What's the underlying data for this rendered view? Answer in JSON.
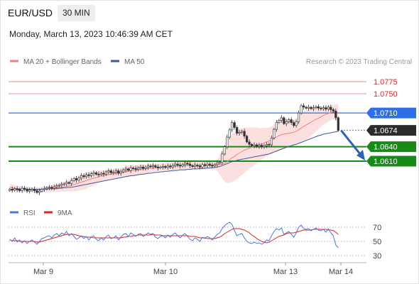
{
  "header": {
    "symbol": "EUR/USD",
    "timeframe": "30 MIN",
    "datetime": "Monday, March 13, 2023 10:46:39 AM CET"
  },
  "legend": {
    "items": [
      {
        "label": "MA 20 + Bollinger Bands",
        "color": "#f08080"
      },
      {
        "label": "MA 50",
        "color": "#3d5a99"
      }
    ],
    "copyright": "Research © 2023 Trading Central"
  },
  "rsi_legend": {
    "items": [
      {
        "label": "RSI",
        "color": "#4a78d6"
      },
      {
        "label": "9MA",
        "color": "#e02020"
      }
    ]
  },
  "chart_data": {
    "type": "candlestick",
    "instrument": "EUR/USD",
    "timeframe": "30 MIN",
    "x_tick_labels": [
      "Mar 9",
      "Mar 10",
      "Mar 13",
      "Mar 14"
    ],
    "price_ylim": [
      1.0535,
      1.08
    ],
    "levels": [
      {
        "value": "1.0775",
        "type": "resistance",
        "color": "#f4a0a0",
        "boxed": false
      },
      {
        "value": "1.0750",
        "type": "resistance",
        "color": "#f4a0a0",
        "boxed": false
      },
      {
        "value": "1.0710",
        "type": "pivot",
        "color": "#2e6fe8",
        "boxed": true
      },
      {
        "value": "1.0674",
        "type": "last_price",
        "color": "#2b2b2b",
        "boxed": true
      },
      {
        "value": "1.0640",
        "type": "support",
        "color": "#188a18",
        "boxed": true
      },
      {
        "value": "1.0610",
        "type": "support",
        "color": "#188a18",
        "boxed": true
      }
    ],
    "arrow_direction": "down",
    "arrow_color": "#2d62b5",
    "close": [
      1.0552,
      1.055,
      1.0553,
      1.0551,
      1.0549,
      1.0554,
      1.0552,
      1.0548,
      1.055,
      1.0552,
      1.0549,
      1.0545,
      1.0548,
      1.0552,
      1.0553,
      1.0555,
      1.0556,
      1.0554,
      1.0557,
      1.0559,
      1.056,
      1.0562,
      1.0563,
      1.0566,
      1.0564,
      1.057,
      1.0574,
      1.0571,
      1.0575,
      1.058,
      1.0578,
      1.0582,
      1.058,
      1.0584,
      1.0586,
      1.0583,
      1.0582,
      1.0585,
      1.0583,
      1.0588,
      1.059,
      1.0586,
      1.0587,
      1.059,
      1.0585,
      1.0588,
      1.0592,
      1.0594,
      1.0591,
      1.0596,
      1.0595,
      1.0593,
      1.0596,
      1.0598,
      1.0595,
      1.0597,
      1.06,
      1.0599,
      1.0601,
      1.0598,
      1.0596,
      1.0598,
      1.0599,
      1.0597,
      1.06,
      1.0598,
      1.0601,
      1.0604,
      1.0602,
      1.06,
      1.0603,
      1.0606,
      1.0604,
      1.0601,
      1.0599,
      1.0602,
      1.06,
      1.0598,
      1.0603,
      1.0601,
      1.0604,
      1.0602,
      1.06,
      1.0603,
      1.0606,
      1.0608,
      1.0625,
      1.064,
      1.066,
      1.0675,
      1.069,
      1.068,
      1.0668,
      1.067,
      1.0672,
      1.0662,
      1.065,
      1.0645,
      1.0642,
      1.0644,
      1.0641,
      1.0643,
      1.064,
      1.0642,
      1.0645,
      1.0644,
      1.0658,
      1.0676,
      1.069,
      1.0695,
      1.07,
      1.0688,
      1.0692,
      1.0696,
      1.069,
      1.0684,
      1.0692,
      1.071,
      1.0725,
      1.0722,
      1.072,
      1.0722,
      1.0719,
      1.0721,
      1.0723,
      1.072,
      1.0719,
      1.0721,
      1.0718,
      1.0722,
      1.0717,
      1.0714,
      1.07,
      1.0674
    ],
    "ma20": [
      1.0556,
      1.0555,
      1.0554,
      1.0553,
      1.0553,
      1.0552,
      1.0552,
      1.0552,
      1.0552,
      1.0551,
      1.0551,
      1.0551,
      1.0551,
      1.0551,
      1.0552,
      1.0552,
      1.0553,
      1.0553,
      1.0554,
      1.0555,
      1.0555,
      1.0556,
      1.0557,
      1.0558,
      1.0559,
      1.056,
      1.0562,
      1.0563,
      1.0565,
      1.0567,
      1.0568,
      1.057,
      1.0572,
      1.0573,
      1.0575,
      1.0576,
      1.0578,
      1.0579,
      1.058,
      1.0581,
      1.0582,
      1.0583,
      1.0584,
      1.0585,
      1.0585,
      1.0586,
      1.0587,
      1.0588,
      1.0589,
      1.059,
      1.0591,
      1.0591,
      1.0592,
      1.0593,
      1.0594,
      1.0594,
      1.0595,
      1.0596,
      1.0596,
      1.0597,
      1.0597,
      1.0598,
      1.0598,
      1.0599,
      1.0599,
      1.0599,
      1.06,
      1.06,
      1.06,
      1.0601,
      1.0601,
      1.0601,
      1.0601,
      1.0601,
      1.0601,
      1.0601,
      1.0601,
      1.0601,
      1.0601,
      1.0601,
      1.0601,
      1.0601,
      1.0601,
      1.0602,
      1.0602,
      1.0603,
      1.0604,
      1.0606,
      1.0609,
      1.0613,
      1.0617,
      1.062,
      1.0624,
      1.0627,
      1.063,
      1.0633,
      1.0635,
      1.0637,
      1.0639,
      1.0641,
      1.0643,
      1.0644,
      1.0646,
      1.0648,
      1.065,
      1.0652,
      1.0654,
      1.0657,
      1.066,
      1.0663,
      1.0665,
      1.0666,
      1.0667,
      1.0668,
      1.0669,
      1.067,
      1.0672,
      1.0675,
      1.0679,
      1.0682,
      1.0685,
      1.0688,
      1.0691,
      1.0694,
      1.0697,
      1.0699,
      1.0702,
      1.0705,
      1.0707,
      1.0709,
      1.0711,
      1.0712,
      1.0712,
      1.071
    ],
    "ma20_band_width": [
      0.0007,
      0.0007,
      0.0006,
      0.0006,
      0.0006,
      0.0006,
      0.0005,
      0.0005,
      0.0005,
      0.0005,
      0.0005,
      0.0005,
      0.0005,
      0.0006,
      0.0006,
      0.0006,
      0.0006,
      0.0007,
      0.0007,
      0.0008,
      0.0008,
      0.0009,
      0.001,
      0.0011,
      0.0012,
      0.0013,
      0.0014,
      0.0015,
      0.0016,
      0.0017,
      0.0017,
      0.0017,
      0.0016,
      0.0016,
      0.0015,
      0.0014,
      0.0013,
      0.0012,
      0.0011,
      0.0011,
      0.001,
      0.001,
      0.001,
      0.001,
      0.001,
      0.001,
      0.0011,
      0.0011,
      0.0012,
      0.0012,
      0.0012,
      0.0011,
      0.0011,
      0.001,
      0.001,
      0.0009,
      0.0009,
      0.0009,
      0.0008,
      0.0008,
      0.0008,
      0.0008,
      0.0008,
      0.0008,
      0.0008,
      0.0008,
      0.0008,
      0.0008,
      0.0008,
      0.0008,
      0.0008,
      0.0008,
      0.0008,
      0.0008,
      0.0008,
      0.0008,
      0.0008,
      0.0008,
      0.0008,
      0.0008,
      0.0008,
      0.0008,
      0.0008,
      0.0009,
      0.0012,
      0.002,
      0.003,
      0.0038,
      0.0044,
      0.0048,
      0.005,
      0.0051,
      0.0051,
      0.005,
      0.0049,
      0.0047,
      0.0045,
      0.0043,
      0.0041,
      0.0039,
      0.0037,
      0.0035,
      0.0033,
      0.0031,
      0.0029,
      0.0028,
      0.0028,
      0.0029,
      0.0031,
      0.0032,
      0.0032,
      0.0031,
      0.003,
      0.0029,
      0.0028,
      0.0027,
      0.0027,
      0.0028,
      0.003,
      0.0031,
      0.0031,
      0.003,
      0.0029,
      0.0027,
      0.0025,
      0.0023,
      0.0021,
      0.0019,
      0.0018,
      0.0017,
      0.0016,
      0.0015,
      0.0016,
      0.002
    ],
    "ma50": [
      1.0552,
      1.0552,
      1.0552,
      1.0552,
      1.0552,
      1.0552,
      1.0552,
      1.0552,
      1.0552,
      1.0552,
      1.0552,
      1.0552,
      1.0552,
      1.0552,
      1.0552,
      1.0552,
      1.0553,
      1.0553,
      1.0553,
      1.0553,
      1.0554,
      1.0554,
      1.0555,
      1.0555,
      1.0556,
      1.0556,
      1.0557,
      1.0558,
      1.0559,
      1.056,
      1.0561,
      1.0562,
      1.0563,
      1.0564,
      1.0565,
      1.0566,
      1.0567,
      1.0568,
      1.0569,
      1.057,
      1.0571,
      1.0572,
      1.0573,
      1.0574,
      1.0575,
      1.0576,
      1.0577,
      1.0578,
      1.0579,
      1.058,
      1.058,
      1.0581,
      1.0582,
      1.0583,
      1.0583,
      1.0584,
      1.0585,
      1.0585,
      1.0586,
      1.0587,
      1.0587,
      1.0588,
      1.0588,
      1.0589,
      1.0589,
      1.059,
      1.059,
      1.0591,
      1.0591,
      1.0592,
      1.0592,
      1.0592,
      1.0593,
      1.0593,
      1.0594,
      1.0594,
      1.0594,
      1.0595,
      1.0595,
      1.0595,
      1.0596,
      1.0596,
      1.0597,
      1.0597,
      1.0598,
      1.0599,
      1.0601,
      1.0603,
      1.0605,
      1.0607,
      1.0609,
      1.061,
      1.0612,
      1.0613,
      1.0614,
      1.0615,
      1.0616,
      1.0617,
      1.0618,
      1.0619,
      1.062,
      1.0621,
      1.0622,
      1.0623,
      1.0624,
      1.0625,
      1.0627,
      1.0629,
      1.0631,
      1.0633,
      1.0635,
      1.0637,
      1.0639,
      1.0641,
      1.0642,
      1.0644,
      1.0645,
      1.0647,
      1.0649,
      1.0651,
      1.0653,
      1.0655,
      1.0657,
      1.0659,
      1.0661,
      1.0663,
      1.0664,
      1.0666,
      1.0667,
      1.0668,
      1.0669,
      1.067,
      1.0671,
      1.0672
    ],
    "rsi": {
      "yticks": [
        70,
        50,
        30
      ],
      "ylim": [
        20,
        80
      ],
      "rsi_values": [
        53,
        50,
        55,
        49,
        52,
        48,
        51,
        47,
        50,
        52,
        49,
        46,
        50,
        54,
        55,
        57,
        58,
        55,
        59,
        61,
        58,
        62,
        60,
        64,
        58,
        61,
        57,
        53,
        55,
        58,
        54,
        57,
        52,
        56,
        58,
        53,
        51,
        55,
        52,
        57,
        59,
        54,
        55,
        58,
        52,
        56,
        60,
        61,
        57,
        62,
        60,
        57,
        60,
        61,
        57,
        59,
        62,
        60,
        61,
        56,
        54,
        57,
        58,
        55,
        59,
        56,
        60,
        62,
        58,
        55,
        59,
        61,
        57,
        53,
        51,
        55,
        53,
        50,
        56,
        54,
        57,
        55,
        52,
        56,
        60,
        62,
        68,
        72,
        75,
        77,
        74,
        65,
        58,
        60,
        61,
        55,
        50,
        48,
        47,
        49,
        47,
        48,
        46,
        48,
        52,
        51,
        58,
        64,
        68,
        66,
        69,
        60,
        62,
        64,
        60,
        56,
        62,
        70,
        73,
        68,
        67,
        68,
        65,
        67,
        69,
        66,
        65,
        67,
        63,
        68,
        62,
        58,
        45,
        41
      ],
      "ma9_values": [
        52,
        51,
        51,
        51,
        50,
        50,
        50,
        50,
        50,
        50,
        50,
        49,
        49,
        50,
        51,
        52,
        53,
        54,
        55,
        56,
        57,
        58,
        59,
        60,
        60,
        60,
        60,
        59,
        58,
        57,
        57,
        56,
        56,
        56,
        55,
        55,
        55,
        55,
        55,
        55,
        55,
        55,
        55,
        55,
        55,
        55,
        56,
        56,
        57,
        57,
        58,
        58,
        59,
        59,
        59,
        59,
        59,
        59,
        60,
        59,
        59,
        59,
        58,
        58,
        58,
        58,
        58,
        58,
        58,
        58,
        58,
        58,
        58,
        57,
        57,
        57,
        56,
        55,
        55,
        55,
        54,
        54,
        54,
        54,
        55,
        56,
        58,
        61,
        63,
        65,
        67,
        68,
        68,
        68,
        67,
        66,
        64,
        62,
        59,
        57,
        54,
        52,
        50,
        49,
        48,
        49,
        51,
        53,
        55,
        57,
        58,
        59,
        61,
        62,
        62,
        62,
        63,
        64,
        65,
        66,
        66,
        66,
        66,
        67,
        67,
        67,
        67,
        67,
        67,
        66,
        66,
        65,
        63,
        60
      ]
    }
  }
}
